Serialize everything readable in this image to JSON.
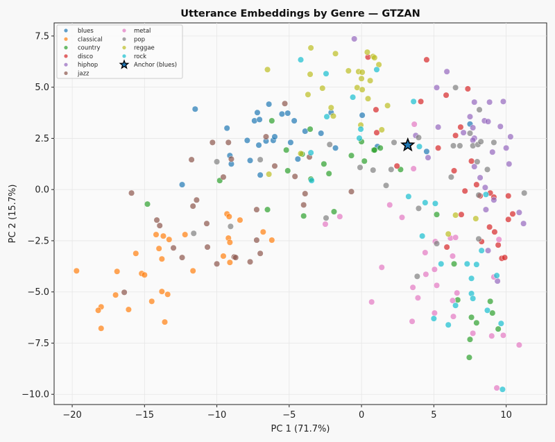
{
  "chart_data": {
    "type": "scatter",
    "title": "Utterance Embeddings by Genre — GTZAN",
    "xlabel": "PC 1 (71.7%)",
    "ylabel": "PC 2 (15.7%)",
    "xlim": [
      -21.25,
      12.8
    ],
    "ylim": [
      -10.5,
      8.14
    ],
    "xticks": [
      -20,
      -15,
      -10,
      -5,
      0,
      5,
      10
    ],
    "yticks": [
      -10.0,
      -7.5,
      -5.0,
      -2.5,
      0.0,
      2.5,
      5.0,
      7.5
    ],
    "xtick_labels": [
      "−20",
      "−15",
      "−10",
      "−5",
      "0",
      "5",
      "10"
    ],
    "ytick_labels": [
      "−10.0",
      "−7.5",
      "−5.0",
      "−2.5",
      "0.0",
      "2.5",
      "5.0",
      "7.5"
    ],
    "grid": true,
    "legend_placement": "top-left",
    "series": [
      {
        "name": "blues",
        "color": "#1f77b4",
        "points": [
          [
            -11.5,
            3.93
          ],
          [
            -9.3,
            3.0
          ],
          [
            -9.1,
            1.66
          ],
          [
            -9.0,
            1.25
          ],
          [
            -12.4,
            0.24
          ],
          [
            -7.9,
            2.4
          ],
          [
            -7.1,
            2.17
          ],
          [
            -6.6,
            2.37
          ],
          [
            -6.1,
            2.4
          ],
          [
            -6.0,
            2.58
          ],
          [
            -4.9,
            2.3
          ],
          [
            -3.9,
            2.85
          ],
          [
            -2.8,
            2.75
          ],
          [
            -1.8,
            2.03
          ],
          [
            -4.4,
            1.49
          ],
          [
            -7.7,
            1.42
          ],
          [
            -7.0,
            0.71
          ],
          [
            -6.4,
            4.17
          ],
          [
            -7.2,
            3.76
          ],
          [
            -7.4,
            3.36
          ],
          [
            -7.05,
            3.42
          ],
          [
            -5.5,
            3.69
          ],
          [
            -5.1,
            3.73
          ],
          [
            -4.65,
            3.36
          ],
          [
            -2.1,
            3.76
          ],
          [
            0.05,
            3.63
          ],
          [
            7.5,
            3.2
          ],
          [
            4.5,
            1.86
          ],
          [
            1.1,
            2.1
          ]
        ]
      },
      {
        "name": "classical",
        "color": "#ff7f0e",
        "points": [
          [
            -19.7,
            -3.97
          ],
          [
            -16.9,
            -4.0
          ],
          [
            -15.6,
            -3.12
          ],
          [
            -14.2,
            -2.2
          ],
          [
            -13.7,
            -2.27
          ],
          [
            -13.3,
            -2.44
          ],
          [
            -14.0,
            -2.88
          ],
          [
            -13.8,
            -3.39
          ],
          [
            -12.2,
            -2.2
          ],
          [
            -15.2,
            -4.1
          ],
          [
            -15.0,
            -4.17
          ],
          [
            -11.65,
            -3.97
          ],
          [
            -17.0,
            -5.15
          ],
          [
            -18.0,
            -5.73
          ],
          [
            -18.2,
            -5.9
          ],
          [
            -16.1,
            -5.86
          ],
          [
            -14.5,
            -5.46
          ],
          [
            -13.8,
            -4.98
          ],
          [
            -13.4,
            -5.12
          ],
          [
            -13.6,
            -6.47
          ],
          [
            -18.0,
            -6.78
          ],
          [
            -9.3,
            -1.19
          ],
          [
            -9.15,
            -1.32
          ],
          [
            -8.4,
            -1.49
          ],
          [
            -9.2,
            -2.37
          ],
          [
            -9.1,
            -2.58
          ],
          [
            -9.55,
            -3.25
          ],
          [
            -9.1,
            -3.56
          ],
          [
            -6.8,
            -2.07
          ],
          [
            -6.2,
            -2.47
          ]
        ]
      },
      {
        "name": "country",
        "color": "#2ca02c",
        "points": [
          [
            -3.55,
            2.95
          ],
          [
            -5.2,
            1.93
          ],
          [
            -4.1,
            1.73
          ],
          [
            -5.1,
            0.92
          ],
          [
            -9.8,
            0.44
          ],
          [
            -6.5,
            -0.98
          ],
          [
            -2.6,
            1.25
          ],
          [
            -2.25,
            0.78
          ],
          [
            -3.5,
            0.51
          ],
          [
            -4.0,
            -1.29
          ],
          [
            -1.9,
            -1.08
          ],
          [
            -0.7,
            1.66
          ],
          [
            0.2,
            1.39
          ],
          [
            0.0,
            2.34
          ],
          [
            0.85,
            1.93
          ],
          [
            -14.8,
            -0.71
          ],
          [
            -6.2,
            3.36
          ],
          [
            1.3,
            2.03
          ],
          [
            0.9,
            1.93
          ],
          [
            2.7,
            0.98
          ],
          [
            5.2,
            -1.22
          ],
          [
            6.4,
            -3.63
          ],
          [
            6.65,
            -5.39
          ],
          [
            8.9,
            -5.46
          ],
          [
            9.05,
            -6.03
          ],
          [
            7.6,
            -6.24
          ],
          [
            7.95,
            -6.51
          ],
          [
            9.45,
            -6.81
          ],
          [
            7.5,
            -7.32
          ],
          [
            7.45,
            -8.2
          ]
        ]
      },
      {
        "name": "disco",
        "color": "#d62728",
        "points": [
          [
            0.45,
            6.47
          ],
          [
            4.5,
            6.34
          ],
          [
            7.35,
            4.92
          ],
          [
            5.85,
            4.61
          ],
          [
            4.1,
            4.3
          ],
          [
            1.0,
            3.9
          ],
          [
            1.05,
            2.78
          ],
          [
            6.85,
            3.05
          ],
          [
            6.5,
            2.64
          ],
          [
            5.3,
            2.03
          ],
          [
            2.45,
            1.15
          ],
          [
            7.6,
            1.39
          ],
          [
            6.4,
            0.92
          ],
          [
            7.95,
            0.24
          ],
          [
            7.15,
            -0.07
          ],
          [
            8.9,
            -0.17
          ],
          [
            9.15,
            -0.37
          ],
          [
            8.2,
            -0.31
          ],
          [
            10.15,
            -0.31
          ],
          [
            6.9,
            -1.22
          ],
          [
            10.45,
            -1.19
          ],
          [
            10.15,
            -1.46
          ],
          [
            8.85,
            -1.83
          ],
          [
            9.2,
            -2.07
          ],
          [
            8.3,
            -2.54
          ],
          [
            9.45,
            -2.71
          ],
          [
            5.9,
            -2.81
          ],
          [
            9.7,
            -3.36
          ],
          [
            9.9,
            -3.32
          ]
        ]
      },
      {
        "name": "hiphop",
        "color": "#9467bd",
        "points": [
          [
            -0.5,
            7.36
          ],
          [
            5.9,
            5.76
          ],
          [
            5.2,
            4.98
          ],
          [
            7.8,
            4.27
          ],
          [
            8.85,
            4.27
          ],
          [
            9.8,
            4.3
          ],
          [
            7.5,
            3.56
          ],
          [
            8.5,
            3.36
          ],
          [
            8.75,
            3.32
          ],
          [
            7.7,
            3.02
          ],
          [
            9.6,
            3.08
          ],
          [
            5.3,
            3.05
          ],
          [
            7.05,
            2.78
          ],
          [
            7.8,
            2.51
          ],
          [
            7.7,
            2.41
          ],
          [
            10.3,
            2.58
          ],
          [
            10.0,
            2.03
          ],
          [
            9.05,
            1.83
          ],
          [
            4.6,
            1.56
          ],
          [
            3.75,
            2.64
          ],
          [
            10.2,
            1.25
          ],
          [
            7.8,
            1.12
          ],
          [
            8.2,
            0.58
          ],
          [
            8.55,
            0.1
          ],
          [
            9.15,
            -0.51
          ],
          [
            8.6,
            -0.98
          ],
          [
            10.9,
            -1.12
          ],
          [
            11.2,
            -1.66
          ],
          [
            8.75,
            -2.98
          ],
          [
            9.4,
            -4.47
          ]
        ]
      },
      {
        "name": "jazz",
        "color": "#8c564b",
        "points": [
          [
            -10.3,
            2.3
          ],
          [
            -9.2,
            2.3
          ],
          [
            -9.0,
            1.49
          ],
          [
            -11.75,
            1.46
          ],
          [
            -9.55,
            0.61
          ],
          [
            -15.9,
            -0.17
          ],
          [
            -11.4,
            -0.51
          ],
          [
            -11.65,
            -0.81
          ],
          [
            -14.15,
            -1.49
          ],
          [
            -13.95,
            -1.76
          ],
          [
            -10.7,
            -1.66
          ],
          [
            -13.0,
            -2.85
          ],
          [
            -12.4,
            -3.32
          ],
          [
            -10.65,
            -2.81
          ],
          [
            -10.0,
            -3.63
          ],
          [
            -16.4,
            -5.02
          ],
          [
            -8.8,
            -3.29
          ],
          [
            -6.6,
            2.58
          ],
          [
            -6.0,
            1.15
          ],
          [
            -4.6,
            0.64
          ],
          [
            -3.6,
            1.59
          ],
          [
            -3.9,
            -0.2
          ],
          [
            -4.0,
            -0.75
          ],
          [
            -0.7,
            -0.1
          ],
          [
            -7.25,
            -0.98
          ],
          [
            -7.25,
            -2.47
          ],
          [
            -7.0,
            -3.12
          ],
          [
            -8.7,
            -3.32
          ],
          [
            -7.7,
            -3.53
          ],
          [
            -5.3,
            4.2
          ]
        ]
      },
      {
        "name": "metal",
        "color": "#e377c2",
        "points": [
          [
            -1.5,
            -1.32
          ],
          [
            -2.5,
            -1.69
          ],
          [
            3.65,
            3.19
          ],
          [
            3.6,
            1.02
          ],
          [
            1.95,
            -0.75
          ],
          [
            2.8,
            -1.36
          ],
          [
            6.15,
            -2.37
          ],
          [
            6.5,
            -2.34
          ],
          [
            5.1,
            -2.54
          ],
          [
            9.5,
            -2.44
          ],
          [
            4.4,
            -3.08
          ],
          [
            6.3,
            -3.25
          ],
          [
            1.4,
            -3.8
          ],
          [
            5.05,
            -3.9
          ],
          [
            4.45,
            -4.14
          ],
          [
            3.55,
            -4.78
          ],
          [
            5.2,
            -4.68
          ],
          [
            3.9,
            -5.29
          ],
          [
            0.7,
            -5.49
          ],
          [
            6.6,
            -5.05
          ],
          [
            6.3,
            -5.42
          ],
          [
            5.05,
            -6.03
          ],
          [
            6.35,
            -6.2
          ],
          [
            3.5,
            -6.44
          ],
          [
            7.7,
            -7.02
          ],
          [
            9.0,
            -7.15
          ],
          [
            9.8,
            -7.12
          ],
          [
            10.9,
            -7.59
          ],
          [
            9.35,
            -9.69
          ],
          [
            9.15,
            -4.27
          ]
        ]
      },
      {
        "name": "pop",
        "color": "#7f7f7f",
        "points": [
          [
            -10.0,
            1.36
          ],
          [
            -9.05,
            -1.8
          ],
          [
            -11.6,
            -2.14
          ],
          [
            -7.0,
            1.46
          ],
          [
            -2.45,
            -1.39
          ],
          [
            -2.2,
            2.2
          ],
          [
            -0.1,
            1.08
          ],
          [
            0.8,
            0.95
          ],
          [
            2.25,
            2.3
          ],
          [
            3.95,
            2.54
          ],
          [
            6.5,
            4.98
          ],
          [
            8.15,
            3.9
          ],
          [
            7.5,
            2.75
          ],
          [
            6.35,
            2.14
          ],
          [
            6.8,
            2.14
          ],
          [
            7.7,
            2.14
          ],
          [
            8.05,
            2.2
          ],
          [
            8.25,
            2.34
          ],
          [
            9.15,
            2.3
          ],
          [
            8.0,
            1.36
          ],
          [
            2.05,
            0.98
          ],
          [
            1.7,
            0.2
          ],
          [
            6.2,
            0.61
          ],
          [
            8.7,
            0.98
          ],
          [
            8.1,
            -0.27
          ],
          [
            11.25,
            -0.17
          ],
          [
            3.95,
            -0.92
          ],
          [
            8.1,
            -2.41
          ],
          [
            5.2,
            -2.64
          ],
          [
            3.85,
            -4.24
          ]
        ]
      },
      {
        "name": "reggae",
        "color": "#bcbd22",
        "points": [
          [
            -3.5,
            6.92
          ],
          [
            -1.8,
            6.64
          ],
          [
            -6.5,
            5.86
          ],
          [
            -3.55,
            5.63
          ],
          [
            -2.7,
            4.95
          ],
          [
            -3.7,
            4.64
          ],
          [
            -2.1,
            4.0
          ],
          [
            -1.95,
            3.59
          ],
          [
            -0.9,
            5.8
          ],
          [
            -0.2,
            5.76
          ],
          [
            0.05,
            5.73
          ],
          [
            0.0,
            5.42
          ],
          [
            0.6,
            5.32
          ],
          [
            -0.3,
            4.98
          ],
          [
            0.05,
            4.88
          ],
          [
            0.45,
            4.44
          ],
          [
            0.4,
            6.71
          ],
          [
            0.8,
            6.5
          ],
          [
            0.9,
            6.44
          ],
          [
            1.2,
            6.1
          ],
          [
            1.8,
            4.1
          ],
          [
            1.4,
            2.92
          ],
          [
            -0.05,
            3.15
          ],
          [
            -4.2,
            1.76
          ],
          [
            -6.4,
            0.75
          ],
          [
            6.5,
            -1.25
          ],
          [
            7.9,
            -1.42
          ],
          [
            6.0,
            -2.17
          ]
        ]
      },
      {
        "name": "rock",
        "color": "#17becf",
        "points": [
          [
            -4.2,
            6.34
          ],
          [
            -2.45,
            5.66
          ],
          [
            -0.6,
            4.51
          ],
          [
            -2.4,
            3.56
          ],
          [
            -0.05,
            2.95
          ],
          [
            -0.15,
            2.51
          ],
          [
            1.05,
            5.86
          ],
          [
            3.6,
            4.3
          ],
          [
            4.0,
            2.1
          ],
          [
            -3.5,
            1.8
          ],
          [
            -3.45,
            0.44
          ],
          [
            3.25,
            -0.34
          ],
          [
            4.4,
            -0.64
          ],
          [
            5.1,
            -0.68
          ],
          [
            8.6,
            -0.24
          ],
          [
            4.2,
            -2.27
          ],
          [
            8.3,
            -2.98
          ],
          [
            5.5,
            -3.63
          ],
          [
            7.3,
            -3.63
          ],
          [
            7.95,
            -3.66
          ],
          [
            9.35,
            -4.2
          ],
          [
            7.6,
            -4.34
          ],
          [
            7.6,
            -5.08
          ],
          [
            7.7,
            -5.32
          ],
          [
            6.5,
            -5.66
          ],
          [
            8.7,
            -5.9
          ],
          [
            5.0,
            -6.3
          ],
          [
            6.0,
            -6.61
          ],
          [
            9.65,
            -6.54
          ],
          [
            9.75,
            -9.76
          ]
        ]
      }
    ],
    "anchor": {
      "name": "Anchor (blues)",
      "color": "#1f77b4",
      "edge_color": "#000000",
      "marker": "star",
      "point": [
        3.2,
        2.17
      ]
    }
  }
}
